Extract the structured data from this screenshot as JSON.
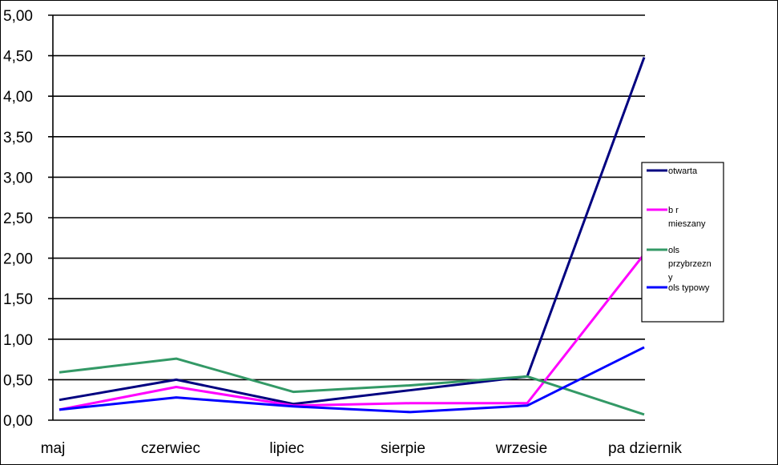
{
  "chart_data": {
    "type": "line",
    "categories": [
      "maj",
      "czerwiec",
      "lipiec",
      "sierpie",
      "wrzesie",
      "pa dziernik"
    ],
    "ylim": [
      0,
      5
    ],
    "yticks": [
      "0,00",
      "0,50",
      "1,00",
      "1,50",
      "2,00",
      "2,50",
      "3,00",
      "3,50",
      "4,00",
      "4,50",
      "5,00"
    ],
    "grid": true,
    "legend_position": "right",
    "series": [
      {
        "name": "otwarta",
        "color": "#000080",
        "values": [
          0.25,
          0.5,
          0.2,
          0.37,
          0.54,
          4.48
        ]
      },
      {
        "name": "b  r mieszany",
        "color": "#ff00ff",
        "values": [
          0.13,
          0.41,
          0.18,
          0.21,
          0.21,
          2.05
        ]
      },
      {
        "name": "ols przybrzezny",
        "color": "#339966",
        "values": [
          0.59,
          0.76,
          0.35,
          0.43,
          0.54,
          0.07
        ]
      },
      {
        "name": "ols typowy",
        "color": "#0000ff",
        "values": [
          0.13,
          0.28,
          0.17,
          0.1,
          0.18,
          0.9
        ]
      }
    ]
  }
}
